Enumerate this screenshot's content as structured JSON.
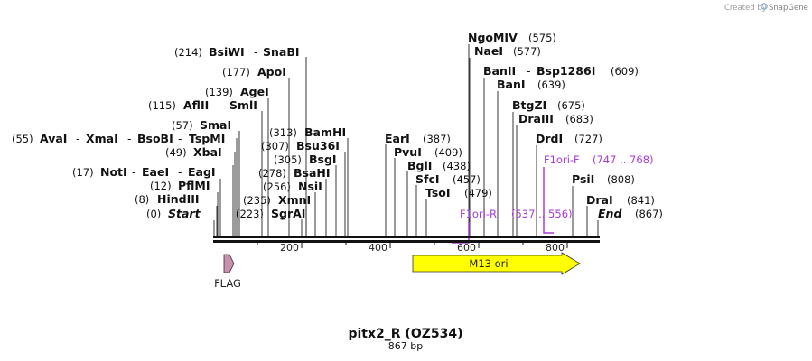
{
  "credit": {
    "prefix": "Created by",
    "brand": "SnapGene"
  },
  "map": {
    "title": "pitx2_R (OZ534)",
    "length_label": "867 bp",
    "length": 867,
    "ticks": [
      "200",
      "400",
      "600",
      "800"
    ],
    "start_label": {
      "pos": "(0)",
      "name": "Start"
    },
    "end_label": {
      "pos": "(867)",
      "name": "End"
    },
    "left_labels": [
      {
        "pos": "(214)",
        "names": [
          "BsiWI",
          "SnaBI"
        ]
      },
      {
        "pos": "(177)",
        "names": [
          "ApoI"
        ]
      },
      {
        "pos": "(139)",
        "names": [
          "AgeI"
        ]
      },
      {
        "pos": "(115)",
        "names": [
          "AflII",
          "SmlI"
        ]
      },
      {
        "pos": "(57)",
        "names": [
          "SmaI"
        ]
      },
      {
        "pos": "(55)",
        "names": [
          "AvaI",
          "XmaI",
          "BsoBI",
          "TspMI"
        ]
      },
      {
        "pos": "(49)",
        "names": [
          "XbaI"
        ]
      },
      {
        "pos": "(17)",
        "names": [
          "NotI",
          "EaeI",
          "EagI"
        ]
      },
      {
        "pos": "(12)",
        "names": [
          "PflMI"
        ]
      },
      {
        "pos": "(8)",
        "names": [
          "HindIII"
        ]
      }
    ],
    "mid_labels": [
      {
        "pos": "(313)",
        "name": "BamHI"
      },
      {
        "pos": "(307)",
        "name": "Bsu36I"
      },
      {
        "pos": "(305)",
        "name": "BsgI"
      },
      {
        "pos": "(278)",
        "name": "BsaHI"
      },
      {
        "pos": "(256)",
        "name": "NsiI"
      },
      {
        "pos": "(235)",
        "name": "XmnI"
      },
      {
        "pos": "(223)",
        "name": "SgrAI"
      }
    ],
    "right_labels": [
      {
        "pos": "(575)",
        "names": [
          "NgoMIV"
        ]
      },
      {
        "pos": "(577)",
        "names": [
          "NaeI"
        ]
      },
      {
        "pos": "(609)",
        "names": [
          "BanII",
          "Bsp1286I"
        ]
      },
      {
        "pos": "(639)",
        "names": [
          "BanI"
        ]
      },
      {
        "pos": "(675)",
        "names": [
          "BtgZI"
        ]
      },
      {
        "pos": "(683)",
        "names": [
          "DraIII"
        ]
      },
      {
        "pos": "(727)",
        "names": [
          "DrdI"
        ]
      },
      {
        "pos": "(387)",
        "names": [
          "EarI"
        ]
      },
      {
        "pos": "(409)",
        "names": [
          "PvuI"
        ]
      },
      {
        "pos": "(438)",
        "names": [
          "BglI"
        ]
      },
      {
        "pos": "(457)",
        "names": [
          "SfcI"
        ]
      },
      {
        "pos": "(479)",
        "names": [
          "TsoI"
        ]
      },
      {
        "pos": "(808)",
        "names": [
          "PsiI"
        ]
      },
      {
        "pos": "(841)",
        "names": [
          "DraI"
        ]
      }
    ],
    "primers": [
      {
        "name": "F1ori-F",
        "range": "(747 .. 768)",
        "color": "#a73ad6"
      },
      {
        "name": "F1ori-R",
        "range": "(537 .. 556)",
        "color": "#a73ad6"
      }
    ],
    "features": [
      {
        "name": "M13 ori",
        "color": "#ffff00"
      },
      {
        "name": "FLAG",
        "color": "#c98fb0"
      }
    ]
  }
}
